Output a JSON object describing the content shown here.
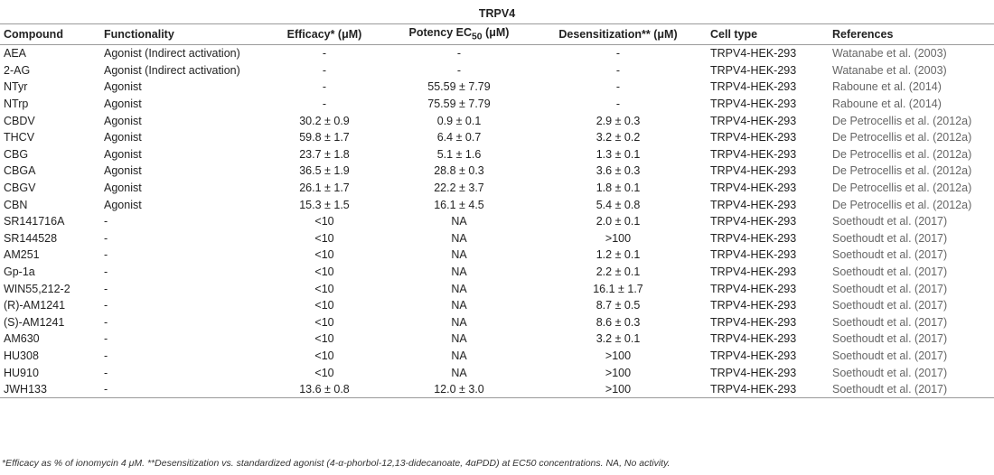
{
  "table": {
    "group_title": "TRPV4",
    "headers": {
      "compound": "Compound",
      "functionality": "Functionality",
      "efficacy": "Efficacy* (μM)",
      "potency_prefix": "Potency EC",
      "potency_sub": "50",
      "potency_suffix": " (μM)",
      "desensitization": "Desensitization** (μM)",
      "cell_type": "Cell type",
      "references": "References"
    },
    "rows": [
      {
        "compound": "AEA",
        "functionality": "Agonist (Indirect activation)",
        "efficacy": "-",
        "potency": "-",
        "desensitization": "-",
        "cell_type": "TRPV4-HEK-293",
        "reference": "Watanabe et al. (2003)"
      },
      {
        "compound": "2-AG",
        "functionality": "Agonist (Indirect activation)",
        "efficacy": "-",
        "potency": "-",
        "desensitization": "-",
        "cell_type": "TRPV4-HEK-293",
        "reference": "Watanabe et al. (2003)"
      },
      {
        "compound": "NTyr",
        "functionality": "Agonist",
        "efficacy": "-",
        "potency": "55.59 ± 7.79",
        "desensitization": "-",
        "cell_type": "TRPV4-HEK-293",
        "reference": "Raboune et al. (2014)"
      },
      {
        "compound": "NTrp",
        "functionality": "Agonist",
        "efficacy": "-",
        "potency": "75.59 ± 7.79",
        "desensitization": "-",
        "cell_type": "TRPV4-HEK-293",
        "reference": "Raboune et al. (2014)"
      },
      {
        "compound": "CBDV",
        "functionality": "Agonist",
        "efficacy": "30.2 ± 0.9",
        "potency": "0.9 ± 0.1",
        "desensitization": "2.9 ± 0.3",
        "cell_type": "TRPV4-HEK-293",
        "reference": "De Petrocellis et al. (2012a)"
      },
      {
        "compound": "THCV",
        "functionality": "Agonist",
        "efficacy": "59.8 ± 1.7",
        "potency": "6.4 ± 0.7",
        "desensitization": "3.2 ± 0.2",
        "cell_type": "TRPV4-HEK-293",
        "reference": "De Petrocellis et al. (2012a)"
      },
      {
        "compound": "CBG",
        "functionality": "Agonist",
        "efficacy": "23.7 ± 1.8",
        "potency": "5.1 ± 1.6",
        "desensitization": "1.3 ± 0.1",
        "cell_type": "TRPV4-HEK-293",
        "reference": "De Petrocellis et al. (2012a)"
      },
      {
        "compound": "CBGA",
        "functionality": "Agonist",
        "efficacy": "36.5 ± 1.9",
        "potency": "28.8 ± 0.3",
        "desensitization": "3.6 ± 0.3",
        "cell_type": "TRPV4-HEK-293",
        "reference": "De Petrocellis et al. (2012a)"
      },
      {
        "compound": "CBGV",
        "functionality": "Agonist",
        "efficacy": "26.1 ± 1.7",
        "potency": "22.2 ± 3.7",
        "desensitization": "1.8 ± 0.1",
        "cell_type": "TRPV4-HEK-293",
        "reference": "De Petrocellis et al. (2012a)"
      },
      {
        "compound": "CBN",
        "functionality": "Agonist",
        "efficacy": "15.3 ± 1.5",
        "potency": "16.1 ± 4.5",
        "desensitization": "5.4 ± 0.8",
        "cell_type": "TRPV4-HEK-293",
        "reference": "De Petrocellis et al. (2012a)"
      },
      {
        "compound": "SR141716A",
        "functionality": "-",
        "efficacy": "<10",
        "potency": "NA",
        "desensitization": "2.0 ± 0.1",
        "cell_type": "TRPV4-HEK-293",
        "reference": "Soethoudt et al. (2017)"
      },
      {
        "compound": "SR144528",
        "functionality": "-",
        "efficacy": "<10",
        "potency": "NA",
        "desensitization": ">100",
        "cell_type": "TRPV4-HEK-293",
        "reference": "Soethoudt et al. (2017)"
      },
      {
        "compound": "AM251",
        "functionality": "-",
        "efficacy": "<10",
        "potency": "NA",
        "desensitization": "1.2 ± 0.1",
        "cell_type": "TRPV4-HEK-293",
        "reference": "Soethoudt et al. (2017)"
      },
      {
        "compound": "Gp-1a",
        "functionality": "-",
        "efficacy": "<10",
        "potency": "NA",
        "desensitization": "2.2 ± 0.1",
        "cell_type": "TRPV4-HEK-293",
        "reference": "Soethoudt et al. (2017)"
      },
      {
        "compound": "WIN55,212-2",
        "functionality": "-",
        "efficacy": "<10",
        "potency": "NA",
        "desensitization": "16.1 ± 1.7",
        "cell_type": "TRPV4-HEK-293",
        "reference": "Soethoudt et al. (2017)"
      },
      {
        "compound": "(R)-AM1241",
        "functionality": "-",
        "efficacy": "<10",
        "potency": "NA",
        "desensitization": "8.7 ± 0.5",
        "cell_type": "TRPV4-HEK-293",
        "reference": "Soethoudt et al. (2017)"
      },
      {
        "compound": "(S)-AM1241",
        "functionality": "-",
        "efficacy": "<10",
        "potency": "NA",
        "desensitization": "8.6 ± 0.3",
        "cell_type": "TRPV4-HEK-293",
        "reference": "Soethoudt et al. (2017)"
      },
      {
        "compound": "AM630",
        "functionality": "-",
        "efficacy": "<10",
        "potency": "NA",
        "desensitization": "3.2 ± 0.1",
        "cell_type": "TRPV4-HEK-293",
        "reference": "Soethoudt et al. (2017)"
      },
      {
        "compound": "HU308",
        "functionality": "-",
        "efficacy": "<10",
        "potency": "NA",
        "desensitization": ">100",
        "cell_type": "TRPV4-HEK-293",
        "reference": "Soethoudt et al. (2017)"
      },
      {
        "compound": "HU910",
        "functionality": "-",
        "efficacy": "<10",
        "potency": "NA",
        "desensitization": ">100",
        "cell_type": "TRPV4-HEK-293",
        "reference": "Soethoudt et al. (2017)"
      },
      {
        "compound": "JWH133",
        "functionality": "-",
        "efficacy": "13.6 ± 0.8",
        "potency": "12.0 ± 3.0",
        "desensitization": ">100",
        "cell_type": "TRPV4-HEK-293",
        "reference": "Soethoudt et al. (2017)"
      }
    ]
  },
  "footnote": "*Efficacy as % of ionomycin 4 μM. **Desensitization vs. standardized agonist (4-α-phorbol-12,13-didecanoate, 4αPDD) at EC50 concentrations. NA, No activity."
}
